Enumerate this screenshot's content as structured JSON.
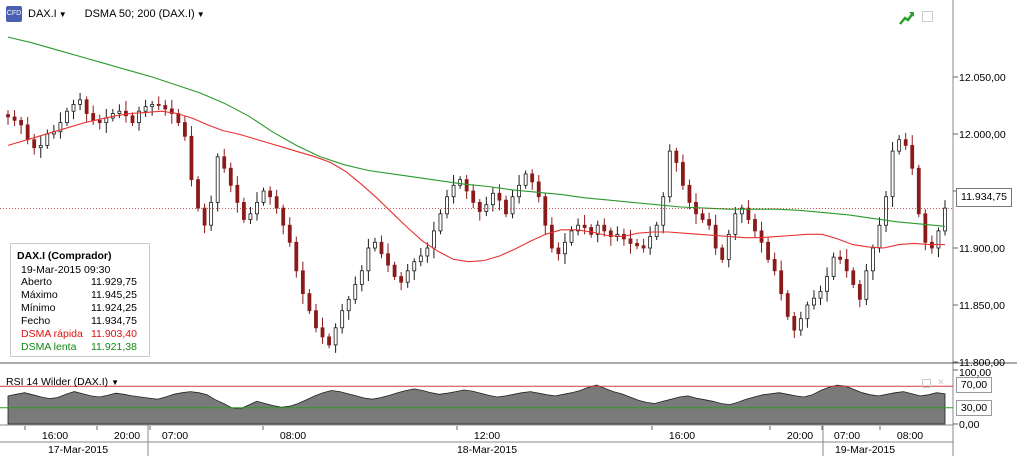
{
  "header": {
    "logo_text": "CFD",
    "symbol": "DAX.I",
    "indicator": "DSMA 50; 200 (DAX.I)"
  },
  "icons": {
    "trend": "trend-up-icon",
    "window": "window-icon"
  },
  "legend": {
    "title": "DAX.I (Comprador)",
    "datetime": "19-Mar-2015 09:30",
    "rows": [
      {
        "label": "Aberto",
        "value": "11.929,75",
        "color": "#000000"
      },
      {
        "label": "Máximo",
        "value": "11.945,25",
        "color": "#000000"
      },
      {
        "label": "Mínimo",
        "value": "11.924,25",
        "color": "#000000"
      },
      {
        "label": "Fecho",
        "value": "11.934,75",
        "color": "#000000"
      },
      {
        "label": "DSMA rápida",
        "value": "11.903,40",
        "color": "#e01010"
      },
      {
        "label": "DSMA lenta",
        "value": "11.921,38",
        "color": "#118811"
      }
    ]
  },
  "rsi": {
    "label": "RSI 14 Wilder (DAX.I)",
    "upper_tag": "70,00",
    "lower_tag": "30,00"
  },
  "price_tag": "11.934,75",
  "colors": {
    "fast_ma": "#e83030",
    "slow_ma": "#2a9a2a",
    "candle": "#1a1a1a",
    "bearish": "#8b1a1a",
    "grid": "#999999",
    "rsi_fill": "#7a7a7a",
    "rsi_upper": "#d04040",
    "rsi_lower": "#2a9a2a"
  },
  "chart_data": [
    {
      "type": "candlestick",
      "title": "DAX.I",
      "y_ticks": [
        "12.050,00",
        "12.000,00",
        "11.950,00",
        "11.900,00",
        "11.850,00",
        "11.800,00"
      ],
      "ylim": [
        11800,
        12093
      ],
      "current_price": 11934.75,
      "closes": [
        12015,
        12012,
        12008,
        11995,
        11988,
        11990,
        12000,
        12002,
        12010,
        12020,
        12026,
        12030,
        12018,
        12012,
        12010,
        12014,
        12018,
        12020,
        12016,
        12010,
        12020,
        12024,
        12026,
        12025,
        12022,
        12018,
        12010,
        11998,
        11960,
        11935,
        11920,
        11940,
        11980,
        11970,
        11955,
        11940,
        11925,
        11930,
        11940,
        11950,
        11945,
        11935,
        11920,
        11905,
        11880,
        11860,
        11845,
        11830,
        11822,
        11815,
        11830,
        11845,
        11855,
        11868,
        11880,
        11900,
        11905,
        11895,
        11885,
        11875,
        11870,
        11880,
        11888,
        11893,
        11900,
        11915,
        11930,
        11945,
        11955,
        11960,
        11950,
        11940,
        11932,
        11938,
        11948,
        11942,
        11930,
        11945,
        11955,
        11965,
        11958,
        11945,
        11920,
        11900,
        11895,
        11905,
        11915,
        11920,
        11918,
        11912,
        11920,
        11915,
        11910,
        11912,
        11908,
        11904,
        11902,
        11900,
        11910,
        11920,
        11945,
        11985,
        11975,
        11955,
        11940,
        11930,
        11925,
        11920,
        11900,
        11890,
        11912,
        11930,
        11935,
        11925,
        11915,
        11905,
        11890,
        11880,
        11860,
        11840,
        11828,
        11838,
        11850,
        11856,
        11862,
        11875,
        11892,
        11890,
        11880,
        11868,
        11855,
        11880,
        11900,
        11920,
        11945,
        11985,
        11995,
        11990,
        11970,
        11930,
        11905,
        11900,
        11915,
        11935
      ],
      "series": [
        {
          "name": "DSMA rápida",
          "color": "#e83030",
          "values": [
            11990,
            11994,
            11998,
            12002,
            12006,
            12010,
            12013,
            12016,
            12018,
            12019,
            12020,
            12018,
            12014,
            12008,
            12003,
            12000,
            11996,
            11992,
            11988,
            11984,
            11980,
            11975,
            11967,
            11956,
            11944,
            11931,
            11918,
            11906,
            11897,
            11890,
            11888,
            11889,
            11893,
            11899,
            11906,
            11912,
            11916,
            11916,
            11914,
            11911,
            11910,
            11913,
            11914,
            11914,
            11913,
            11912,
            11911,
            11910,
            11909,
            11909,
            11910,
            11911,
            11912,
            11912,
            11908,
            11903,
            11901,
            11900,
            11903,
            11904,
            11903,
            11903
          ]
        },
        {
          "name": "DSMA lenta",
          "color": "#2a9a2a",
          "values": [
            12085,
            12080,
            12074,
            12068,
            12062,
            12056,
            12050,
            12043,
            12036,
            12027,
            12016,
            12002,
            11990,
            11980,
            11973,
            11968,
            11965,
            11962,
            11959,
            11956,
            11954,
            11951,
            11949,
            11947,
            11944,
            11942,
            11940,
            11938,
            11936,
            11935,
            11934,
            11934,
            11934,
            11933,
            11931,
            11929,
            11926,
            11923,
            11921,
            11919
          ]
        }
      ]
    },
    {
      "type": "area",
      "title": "RSI 14 Wilder (DAX.I)",
      "y_ticks": [
        "100,00",
        "70,00",
        "30,00",
        "0,00"
      ],
      "ylim": [
        0,
        100
      ],
      "levels": [
        70,
        30
      ],
      "values": [
        52,
        55,
        58,
        54,
        50,
        47,
        49,
        55,
        60,
        56,
        52,
        50,
        53,
        57,
        55,
        52,
        50,
        48,
        46,
        50,
        55,
        58,
        60,
        58,
        54,
        45,
        38,
        30,
        28,
        35,
        42,
        38,
        34,
        31,
        33,
        38,
        45,
        52,
        58,
        62,
        60,
        56,
        52,
        48,
        46,
        49,
        53,
        58,
        62,
        65,
        62,
        58,
        55,
        57,
        60,
        63,
        61,
        57,
        53,
        50,
        52,
        55,
        58,
        60,
        57,
        54,
        52,
        55,
        58,
        62,
        68,
        72,
        66,
        60,
        56,
        50,
        44,
        40,
        38,
        42,
        46,
        50,
        52,
        48,
        45,
        42,
        38,
        36,
        40,
        46,
        50,
        54,
        56,
        58,
        55,
        52,
        50,
        54,
        62,
        68,
        72,
        70,
        64,
        58,
        54,
        52,
        55,
        58,
        60,
        56,
        52,
        54,
        58,
        56
      ]
    }
  ],
  "x_axis": {
    "ticks": [
      "16:00",
      "20:00",
      "07:00",
      "08:00",
      "12:00",
      "16:00",
      "20:00",
      "07:00",
      "08:00"
    ],
    "dates": [
      "17-Mar-2015",
      "18-Mar-2015",
      "19-Mar-2015"
    ]
  }
}
